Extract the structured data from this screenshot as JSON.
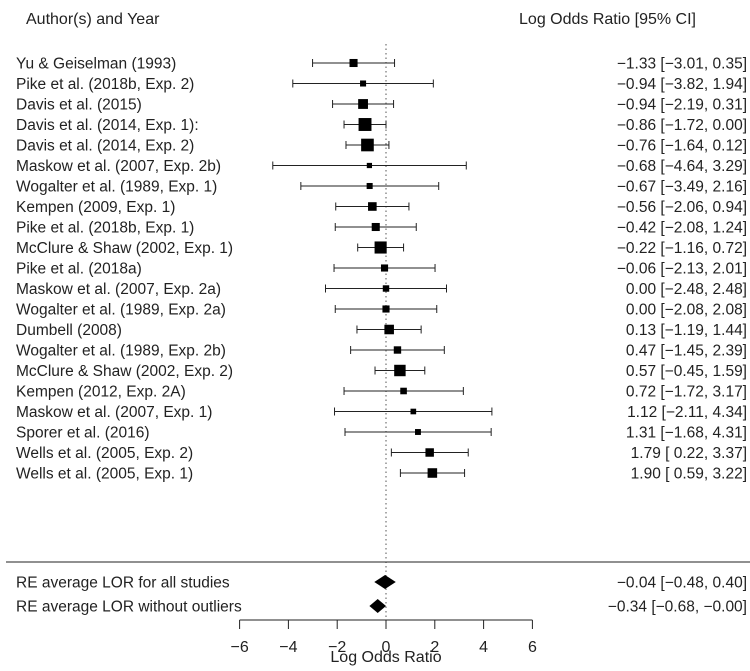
{
  "chart_data": {
    "type": "forest",
    "header_left": "Author(s) and Year",
    "header_right": "Log Odds Ratio [95% CI]",
    "xlabel": "Log Odds Ratio",
    "xlim": [
      -6,
      6
    ],
    "xticks": [
      "−6",
      "−4",
      "−2",
      "0",
      "2",
      "4",
      "6"
    ],
    "xtick_values": [
      -6,
      -4,
      -2,
      0,
      2,
      4,
      6
    ],
    "reference_line": 0,
    "studies": [
      {
        "label": "Yu & Geiselman (1993)",
        "estimate": -1.33,
        "lower": -3.01,
        "upper": 0.35,
        "weight": 3.6,
        "ci_text": "−1.33 [−3.01, 0.35]"
      },
      {
        "label": "Pike et al. (2018b, Exp. 2)",
        "estimate": -0.94,
        "lower": -3.82,
        "upper": 1.94,
        "weight": 2.1,
        "ci_text": "−0.94 [−3.82, 1.94]"
      },
      {
        "label": "Davis et al. (2015)",
        "estimate": -0.94,
        "lower": -2.19,
        "upper": 0.31,
        "weight": 4.9,
        "ci_text": "−0.94 [−2.19, 0.31]"
      },
      {
        "label": "Davis et al. (2014, Exp. 1):",
        "estimate": -0.86,
        "lower": -1.72,
        "upper": 0.0,
        "weight": 7.2,
        "ci_text": "−0.86 [−1.72, 0.00]"
      },
      {
        "label": "Davis et al. (2014, Exp. 2)",
        "estimate": -0.76,
        "lower": -1.64,
        "upper": 0.12,
        "weight": 7.0,
        "ci_text": "−0.76 [−1.64, 0.12]"
      },
      {
        "label": "Maskow et al. (2007, Exp. 2b)",
        "estimate": -0.68,
        "lower": -4.64,
        "upper": 3.29,
        "weight": 1.5,
        "ci_text": "−0.68 [−4.64, 3.29]"
      },
      {
        "label": "Wogalter et al. (1989, Exp. 1)",
        "estimate": -0.67,
        "lower": -3.49,
        "upper": 2.16,
        "weight": 2.1,
        "ci_text": "−0.67 [−3.49, 2.16]"
      },
      {
        "label": "Kempen (2009, Exp. 1)",
        "estimate": -0.56,
        "lower": -2.06,
        "upper": 0.94,
        "weight": 4.0,
        "ci_text": "−0.56 [−2.06, 0.94]"
      },
      {
        "label": "Pike et al. (2018b, Exp. 1)",
        "estimate": -0.42,
        "lower": -2.08,
        "upper": 1.24,
        "weight": 3.6,
        "ci_text": "−0.42 [−2.08, 1.24]"
      },
      {
        "label": "McClure & Shaw (2002, Exp. 1)",
        "estimate": -0.22,
        "lower": -1.16,
        "upper": 0.72,
        "weight": 6.6,
        "ci_text": "−0.22 [−1.16, 0.72]"
      },
      {
        "label": "Pike et al. (2018a)",
        "estimate": -0.06,
        "lower": -2.13,
        "upper": 2.01,
        "weight": 2.9,
        "ci_text": "−0.06 [−2.13, 2.01]"
      },
      {
        "label": "Maskow et al. (2007, Exp. 2a)",
        "estimate": 0.0,
        "lower": -2.48,
        "upper": 2.48,
        "weight": 2.4,
        "ci_text": "0.00 [−2.48, 2.48]"
      },
      {
        "label": "Wogalter et al. (1989, Exp. 2a)",
        "estimate": 0.0,
        "lower": -2.08,
        "upper": 2.08,
        "weight": 2.9,
        "ci_text": "0.00 [−2.08, 2.08]"
      },
      {
        "label": "Dumbell (2008)",
        "estimate": 0.13,
        "lower": -1.19,
        "upper": 1.44,
        "weight": 4.7,
        "ci_text": "0.13 [−1.19, 1.44]"
      },
      {
        "label": "Wogalter et al. (1989, Exp. 2b)",
        "estimate": 0.47,
        "lower": -1.45,
        "upper": 2.39,
        "weight": 3.1,
        "ci_text": "0.47 [−1.45, 2.39]"
      },
      {
        "label": "McClure & Shaw (2002, Exp. 2)",
        "estimate": 0.57,
        "lower": -0.45,
        "upper": 1.59,
        "weight": 6.1,
        "ci_text": "0.57 [−0.45, 1.59]"
      },
      {
        "label": "Kempen (2012, Exp. 2A)",
        "estimate": 0.72,
        "lower": -1.72,
        "upper": 3.17,
        "weight": 2.5,
        "ci_text": "0.72 [−1.72, 3.17]"
      },
      {
        "label": "Maskow et al. (2007, Exp. 1)",
        "estimate": 1.12,
        "lower": -2.11,
        "upper": 4.34,
        "weight": 1.8,
        "ci_text": "1.12 [−2.11, 4.34]"
      },
      {
        "label": "Sporer et al. (2016)",
        "estimate": 1.31,
        "lower": -1.68,
        "upper": 4.31,
        "weight": 2.0,
        "ci_text": "1.31 [−1.68, 4.31]"
      },
      {
        "label": "Wells et al. (2005, Exp. 2)",
        "estimate": 1.79,
        "lower": 0.22,
        "upper": 3.37,
        "weight": 3.9,
        "ci_text": "1.79 [ 0.22, 3.37]"
      },
      {
        "label": "Wells et al. (2005, Exp. 1)",
        "estimate": 1.9,
        "lower": 0.59,
        "upper": 3.22,
        "weight": 4.7,
        "ci_text": "1.90 [ 0.59, 3.22]"
      }
    ],
    "summaries": [
      {
        "label": "RE average LOR for all studies",
        "estimate": -0.04,
        "lower": -0.48,
        "upper": 0.4,
        "ci_text": "−0.04 [−0.48, 0.40]"
      },
      {
        "label": "RE average LOR without outliers",
        "estimate": -0.34,
        "lower": -0.68,
        "upper": -0.0,
        "ci_text": "−0.34 [−0.68, −0.00]"
      }
    ]
  }
}
